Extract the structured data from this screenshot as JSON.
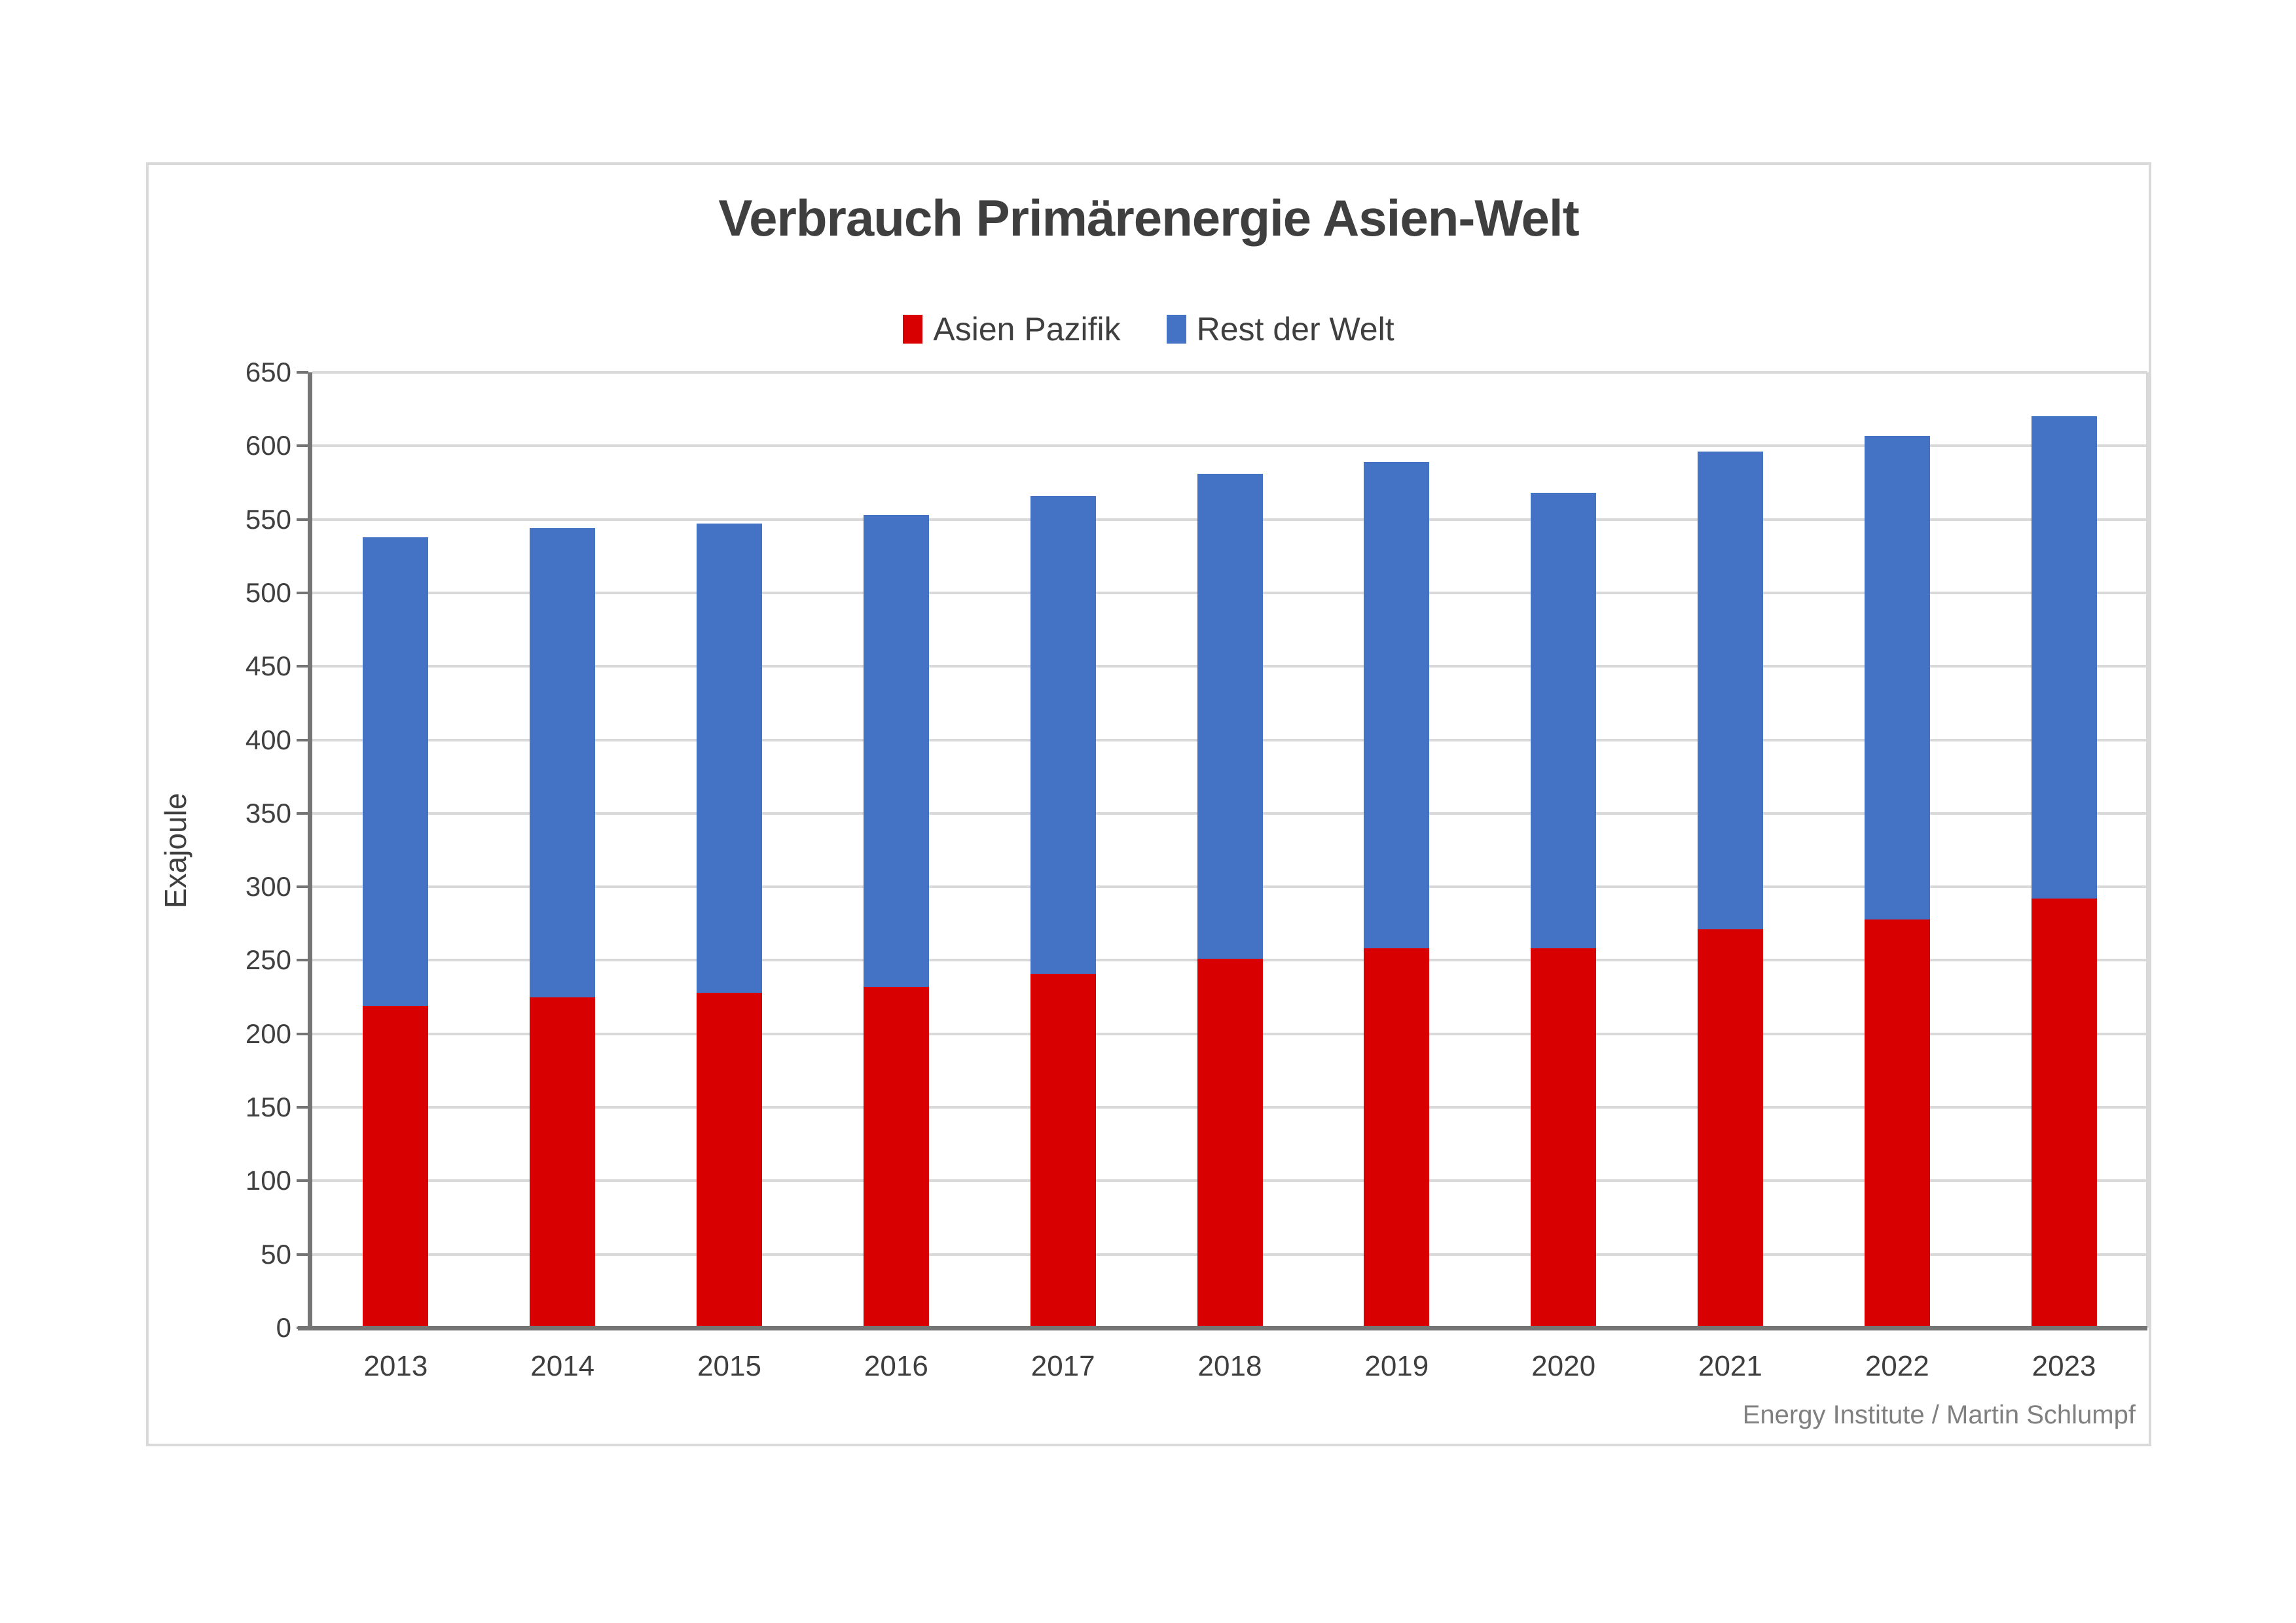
{
  "chart_data": {
    "type": "bar",
    "stacked": true,
    "title": "Verbrauch Primärenergie Asien-Welt",
    "ylabel": "Exajoule",
    "attribution": "Energy Institute / Martin Schlumpf",
    "categories": [
      "2013",
      "2014",
      "2015",
      "2016",
      "2017",
      "2018",
      "2019",
      "2020",
      "2021",
      "2022",
      "2023"
    ],
    "series": [
      {
        "name": "Asien Pazifik",
        "color": "#d80000",
        "values": [
          219,
          225,
          228,
          232,
          241,
          251,
          258,
          258,
          271,
          278,
          292
        ]
      },
      {
        "name": "Rest der Welt",
        "color": "#4472c4",
        "values": [
          319,
          319,
          319,
          321,
          325,
          330,
          331,
          310,
          325,
          329,
          328
        ]
      }
    ],
    "totals": [
      538,
      544,
      547,
      553,
      566,
      581,
      589,
      568,
      596,
      607,
      620
    ],
    "ylim": [
      0,
      650
    ],
    "ytick_step": 50,
    "grid": "horizontal",
    "legend_position": "top"
  },
  "colors": {
    "grid": "#d9d9d9",
    "axis": "#757575",
    "text": "#3f3f3f",
    "attribution_text": "#808080",
    "frame_border": "#d9d9d9",
    "background": "#ffffff"
  }
}
